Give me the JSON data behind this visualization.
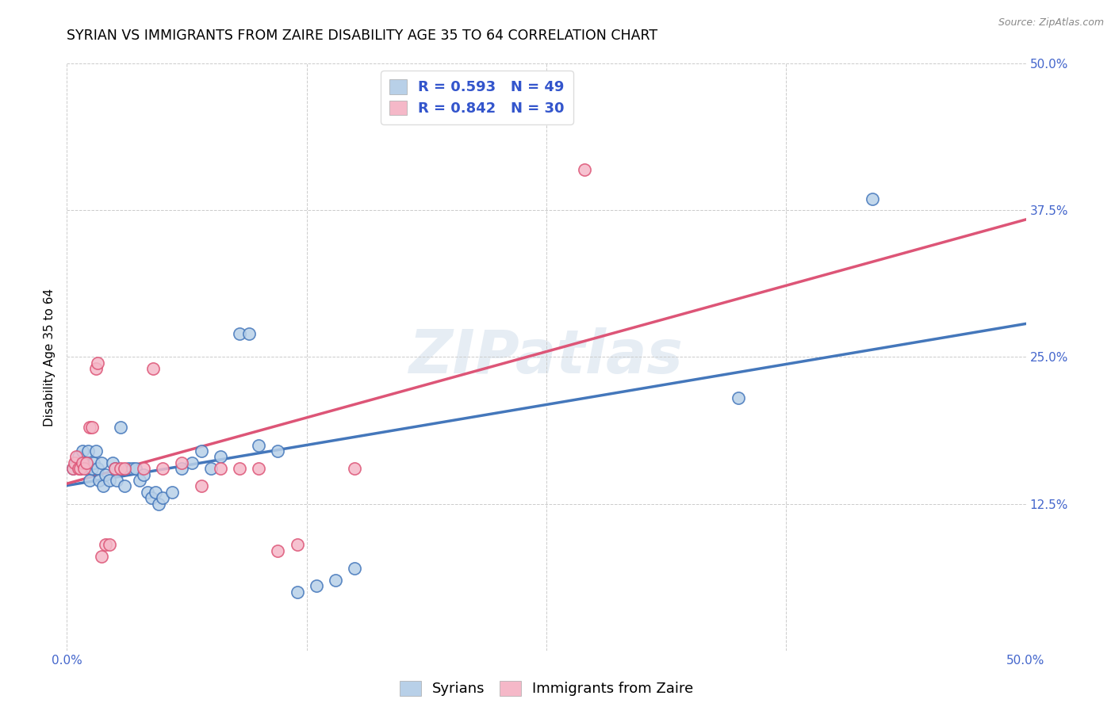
{
  "title": "SYRIAN VS IMMIGRANTS FROM ZAIRE DISABILITY AGE 35 TO 64 CORRELATION CHART",
  "source": "Source: ZipAtlas.com",
  "ylabel": "Disability Age 35 to 64",
  "xlim": [
    0.0,
    0.5
  ],
  "ylim": [
    0.0,
    0.5
  ],
  "xticks": [
    0.0,
    0.125,
    0.25,
    0.375,
    0.5
  ],
  "xticklabels": [
    "0.0%",
    "",
    "",
    "",
    "50.0%"
  ],
  "yticks": [
    0.0,
    0.125,
    0.25,
    0.375,
    0.5
  ],
  "yticklabels": [
    "",
    "12.5%",
    "25.0%",
    "37.5%",
    "50.0%"
  ],
  "background_color": "#ffffff",
  "grid_color": "#cccccc",
  "watermark": "ZIPatlas",
  "legend_R_syrian": "R = 0.593",
  "legend_N_syrian": "N = 49",
  "legend_R_zaire": "R = 0.842",
  "legend_N_zaire": "N = 30",
  "syrian_color": "#b8d0e8",
  "zaire_color": "#f5b8c8",
  "syrian_line_color": "#4477bb",
  "zaire_line_color": "#dd5577",
  "legend_color": "#3355cc",
  "tick_color": "#4466cc",
  "syrian_scatter": [
    [
      0.003,
      0.155
    ],
    [
      0.005,
      0.16
    ],
    [
      0.006,
      0.165
    ],
    [
      0.007,
      0.155
    ],
    [
      0.008,
      0.17
    ],
    [
      0.009,
      0.16
    ],
    [
      0.01,
      0.155
    ],
    [
      0.011,
      0.17
    ],
    [
      0.012,
      0.145
    ],
    [
      0.013,
      0.155
    ],
    [
      0.014,
      0.16
    ],
    [
      0.015,
      0.17
    ],
    [
      0.016,
      0.155
    ],
    [
      0.017,
      0.145
    ],
    [
      0.018,
      0.16
    ],
    [
      0.019,
      0.14
    ],
    [
      0.02,
      0.15
    ],
    [
      0.022,
      0.145
    ],
    [
      0.024,
      0.16
    ],
    [
      0.025,
      0.155
    ],
    [
      0.026,
      0.145
    ],
    [
      0.028,
      0.19
    ],
    [
      0.03,
      0.14
    ],
    [
      0.032,
      0.155
    ],
    [
      0.034,
      0.155
    ],
    [
      0.036,
      0.155
    ],
    [
      0.038,
      0.145
    ],
    [
      0.04,
      0.15
    ],
    [
      0.042,
      0.135
    ],
    [
      0.044,
      0.13
    ],
    [
      0.046,
      0.135
    ],
    [
      0.048,
      0.125
    ],
    [
      0.05,
      0.13
    ],
    [
      0.055,
      0.135
    ],
    [
      0.06,
      0.155
    ],
    [
      0.065,
      0.16
    ],
    [
      0.07,
      0.17
    ],
    [
      0.075,
      0.155
    ],
    [
      0.08,
      0.165
    ],
    [
      0.09,
      0.27
    ],
    [
      0.095,
      0.27
    ],
    [
      0.1,
      0.175
    ],
    [
      0.11,
      0.17
    ],
    [
      0.12,
      0.05
    ],
    [
      0.13,
      0.055
    ],
    [
      0.14,
      0.06
    ],
    [
      0.15,
      0.07
    ],
    [
      0.35,
      0.215
    ],
    [
      0.42,
      0.385
    ]
  ],
  "zaire_scatter": [
    [
      0.003,
      0.155
    ],
    [
      0.004,
      0.16
    ],
    [
      0.005,
      0.165
    ],
    [
      0.006,
      0.155
    ],
    [
      0.007,
      0.155
    ],
    [
      0.008,
      0.16
    ],
    [
      0.009,
      0.155
    ],
    [
      0.01,
      0.16
    ],
    [
      0.012,
      0.19
    ],
    [
      0.013,
      0.19
    ],
    [
      0.015,
      0.24
    ],
    [
      0.016,
      0.245
    ],
    [
      0.018,
      0.08
    ],
    [
      0.02,
      0.09
    ],
    [
      0.022,
      0.09
    ],
    [
      0.025,
      0.155
    ],
    [
      0.028,
      0.155
    ],
    [
      0.03,
      0.155
    ],
    [
      0.04,
      0.155
    ],
    [
      0.045,
      0.24
    ],
    [
      0.05,
      0.155
    ],
    [
      0.06,
      0.16
    ],
    [
      0.07,
      0.14
    ],
    [
      0.08,
      0.155
    ],
    [
      0.09,
      0.155
    ],
    [
      0.1,
      0.155
    ],
    [
      0.11,
      0.085
    ],
    [
      0.12,
      0.09
    ],
    [
      0.15,
      0.155
    ],
    [
      0.27,
      0.41
    ]
  ],
  "title_fontsize": 12.5,
  "axis_label_fontsize": 11,
  "tick_fontsize": 11,
  "legend_fontsize": 13,
  "watermark_fontsize": 55,
  "watermark_color": "#c8d8e8",
  "watermark_alpha": 0.45
}
